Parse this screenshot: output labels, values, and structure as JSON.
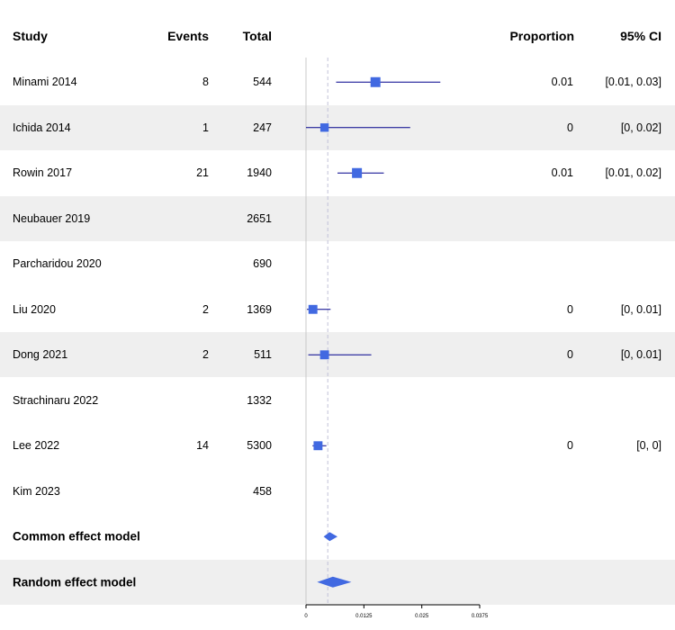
{
  "headers": {
    "study": "Study",
    "events": "Events",
    "total": "Total",
    "proportion": "Proportion",
    "ci": "95% CI"
  },
  "rows": [
    {
      "study": "Minami 2014",
      "events": "8",
      "total": "544",
      "proportion": "0.01",
      "ci": "[0.01, 0.03]",
      "shaded": false
    },
    {
      "study": "Ichida 2014",
      "events": "1",
      "total": "247",
      "proportion": "0",
      "ci": "[0, 0.02]",
      "shaded": true
    },
    {
      "study": "Rowin 2017",
      "events": "21",
      "total": "1940",
      "proportion": "0.01",
      "ci": "[0.01, 0.02]",
      "shaded": false
    },
    {
      "study": "Neubauer 2019",
      "events": "",
      "total": "2651",
      "proportion": "",
      "ci": "",
      "shaded": true
    },
    {
      "study": "Parcharidou 2020",
      "events": "",
      "total": "690",
      "proportion": "",
      "ci": "",
      "shaded": false
    },
    {
      "study": "Liu 2020",
      "events": "2",
      "total": "1369",
      "proportion": "0",
      "ci": "[0, 0.01]",
      "shaded": false
    },
    {
      "study": "Dong 2021",
      "events": "2",
      "total": "511",
      "proportion": "0",
      "ci": "[0, 0.01]",
      "shaded": true
    },
    {
      "study": "Strachinaru 2022",
      "events": "",
      "total": "1332",
      "proportion": "",
      "ci": "",
      "shaded": false
    },
    {
      "study": "Lee 2022",
      "events": "14",
      "total": "5300",
      "proportion": "0",
      "ci": "[0, 0]",
      "shaded": false
    },
    {
      "study": "Kim 2023",
      "events": "",
      "total": "458",
      "proportion": "",
      "ci": "",
      "shaded": false
    }
  ],
  "summary": [
    {
      "label": "Common effect model",
      "shaded": false
    },
    {
      "label": "Random effect model",
      "shaded": true
    }
  ],
  "colors": {
    "marker": "#4169e1",
    "ci_line": "#00008b",
    "diamond": "#4169e1",
    "row_shade": "#efefef",
    "ref_line": "#c0c0d8",
    "axis": "#000000"
  },
  "chart_data": {
    "type": "forest",
    "xlim": [
      0,
      0.0375
    ],
    "ticks": [
      0,
      0.0125,
      0.025,
      0.0375
    ],
    "tick_labels": [
      "0",
      "0.0125",
      "0.025",
      "0.0375"
    ],
    "null_line": 0,
    "pooled_line": 0.0047,
    "studies": [
      {
        "name": "Minami 2014",
        "est": 0.015,
        "lo": 0.0065,
        "hi": 0.029,
        "size": 1.0
      },
      {
        "name": "Ichida 2014",
        "est": 0.004,
        "lo": 0.0,
        "hi": 0.0225,
        "size": 0.85
      },
      {
        "name": "Rowin 2017",
        "est": 0.011,
        "lo": 0.0068,
        "hi": 0.0168,
        "size": 1.0
      },
      {
        "name": "Neubauer 2019",
        "est": null,
        "lo": null,
        "hi": null,
        "size": 0
      },
      {
        "name": "Parcharidou 2020",
        "est": null,
        "lo": null,
        "hi": null,
        "size": 0
      },
      {
        "name": "Liu 2020",
        "est": 0.0015,
        "lo": 0.0002,
        "hi": 0.0053,
        "size": 0.9
      },
      {
        "name": "Dong 2021",
        "est": 0.004,
        "lo": 0.0005,
        "hi": 0.0141,
        "size": 0.9
      },
      {
        "name": "Strachinaru 2022",
        "est": null,
        "lo": null,
        "hi": null,
        "size": 0
      },
      {
        "name": "Lee 2022",
        "est": 0.0026,
        "lo": 0.0014,
        "hi": 0.0044,
        "size": 0.9
      },
      {
        "name": "Kim 2023",
        "est": null,
        "lo": null,
        "hi": null,
        "size": 0
      }
    ],
    "pooled": [
      {
        "name": "Common effect model",
        "est": 0.0051,
        "lo": 0.0038,
        "hi": 0.0068
      },
      {
        "name": "Random effect model",
        "est": 0.0058,
        "lo": 0.0024,
        "hi": 0.0098
      }
    ]
  }
}
